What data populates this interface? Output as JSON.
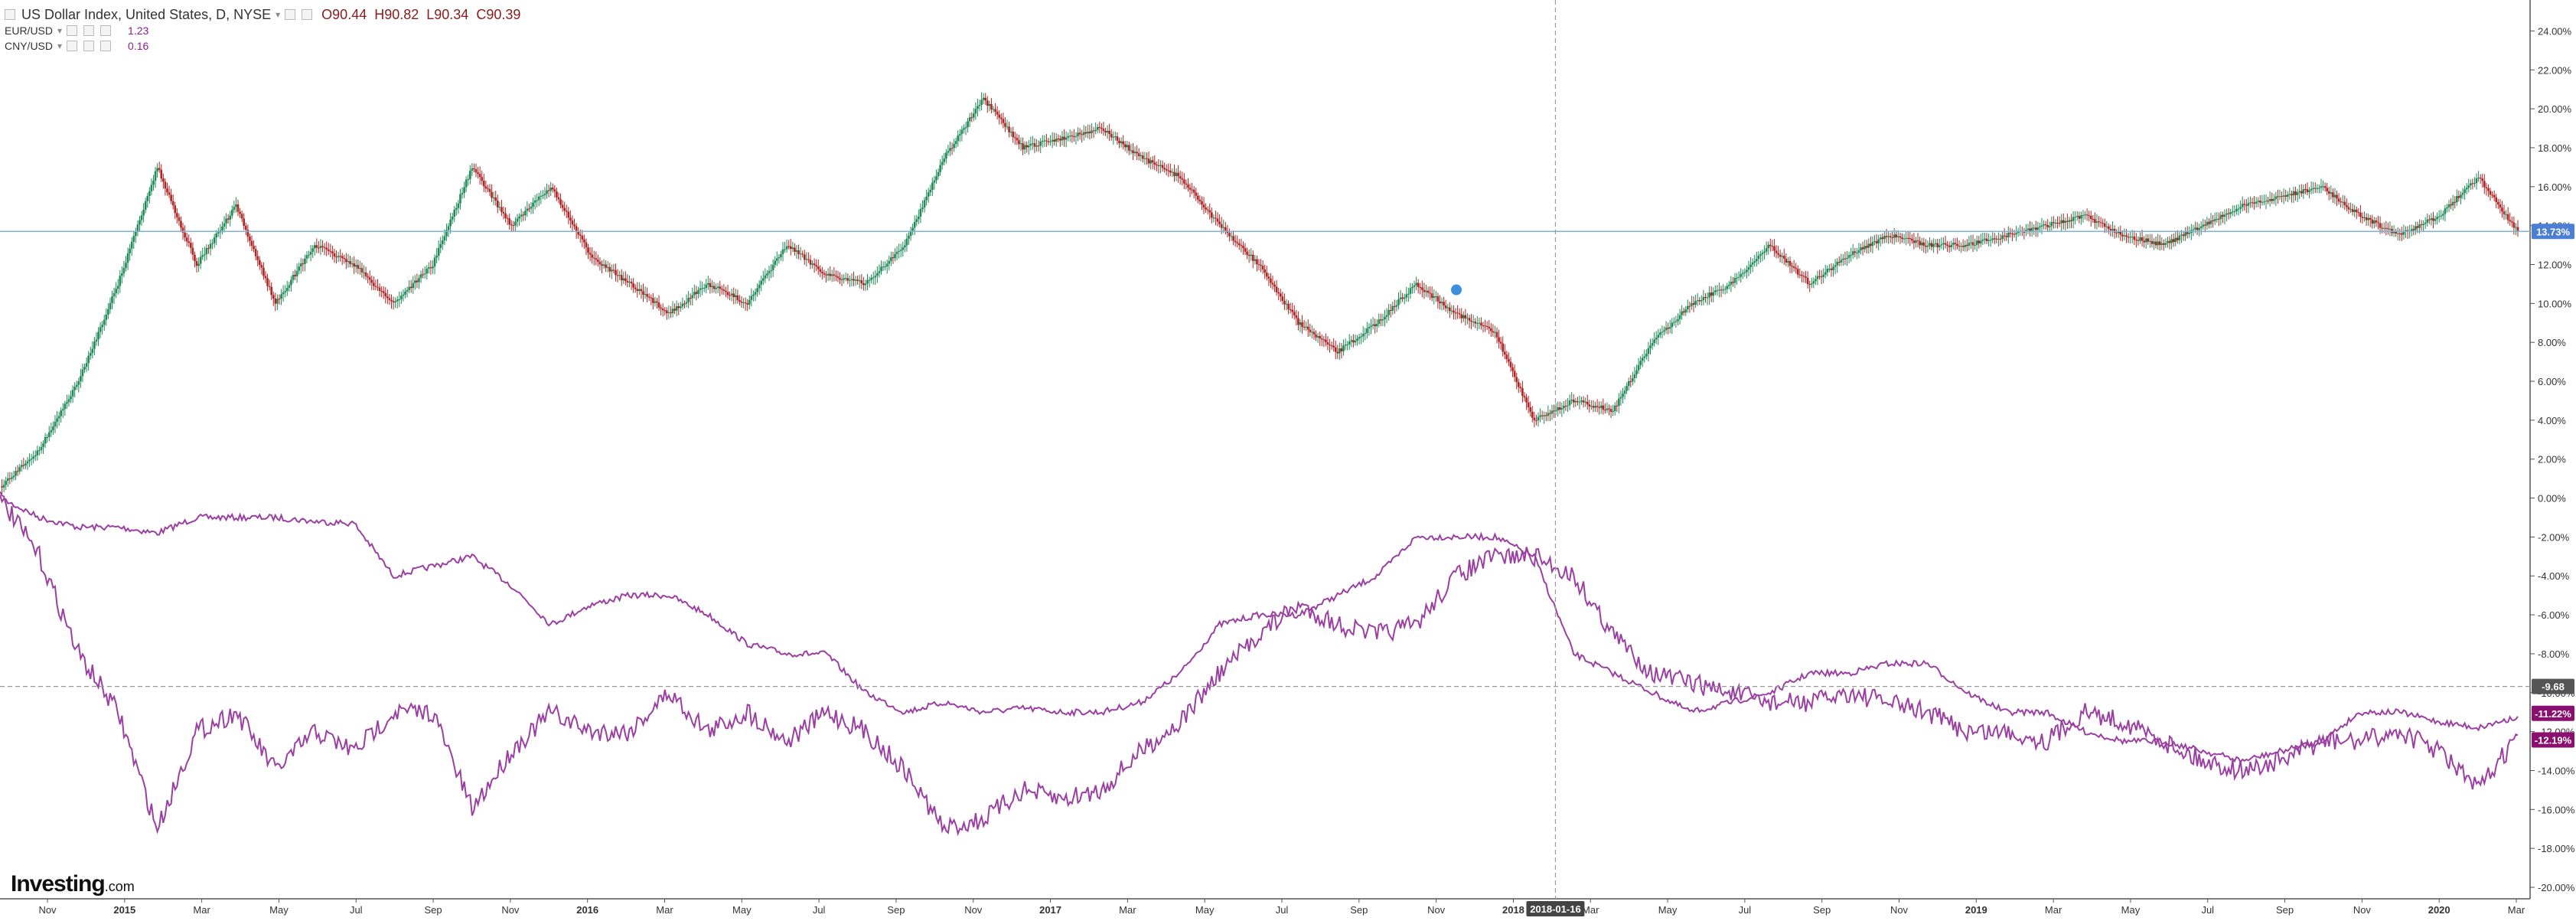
{
  "header": {
    "title": "US Dollar Index, United States, D, NYSE",
    "ohlc": [
      "O90.44",
      "H90.82",
      "L90.34",
      "C90.39"
    ]
  },
  "legend": [
    {
      "name": "EUR/USD",
      "value": "1.23",
      "color": "#8b2090"
    },
    {
      "name": "CNY/USD",
      "value": "0.16",
      "color": "#8b2090"
    }
  ],
  "logo": {
    "text": "Investing",
    "suffix": ".com"
  },
  "colors": {
    "up": "#1e8a57",
    "down": "#b22222",
    "compare": "#9b3fa3",
    "hline": "#7fb3d5",
    "badge_blue": "#4a7fd4",
    "badge_purple": "#8b0f6e",
    "badge_gray": "#555555"
  },
  "chart_data": {
    "type": "line",
    "title": "",
    "xlabel": "",
    "ylabel": "",
    "ylim": [
      -20,
      25
    ],
    "y_tick_labels": [
      "24.00%",
      "22.00%",
      "20.00%",
      "18.00%",
      "16.00%",
      "14.00%",
      "12.00%",
      "10.00%",
      "8.00%",
      "6.00%",
      "4.00%",
      "2.00%",
      "0.00%",
      "-2.00%",
      "-4.00%",
      "-6.00%",
      "-8.00%",
      "-10.00%",
      "-12.00%",
      "-14.00%",
      "-16.00%",
      "-18.00%",
      "-20.00%"
    ],
    "x_tick_labels": [
      "Nov",
      "2015",
      "Mar",
      "May",
      "Jul",
      "Sep",
      "Nov",
      "2016",
      "Mar",
      "May",
      "Jul",
      "Sep",
      "Nov",
      "2017",
      "Mar",
      "May",
      "Jul",
      "Sep",
      "Nov",
      "2018",
      "Mar",
      "May",
      "Jul",
      "Sep",
      "Nov",
      "2019",
      "Mar",
      "May",
      "Jul",
      "Sep",
      "Nov",
      "2020",
      "Mar"
    ],
    "grid": false,
    "crosshair": {
      "x_label": "2018-01-16",
      "y_label": "-9.68"
    },
    "series": [
      {
        "name": "US Dollar Index",
        "last_label": "13.73%",
        "points": [
          [
            "Nov",
            0.5
          ],
          [
            "Dec",
            2.5
          ],
          [
            "2015",
            6
          ],
          [
            "Feb",
            11
          ],
          [
            "Mar",
            17
          ],
          [
            "Apr",
            12
          ],
          [
            "May",
            15
          ],
          [
            "Jun",
            10
          ],
          [
            "Jul",
            13
          ],
          [
            "Aug",
            12
          ],
          [
            "Sep",
            10
          ],
          [
            "Oct",
            12
          ],
          [
            "Nov",
            17
          ],
          [
            "Dec",
            14
          ],
          [
            "2016",
            16
          ],
          [
            "Feb",
            12.5
          ],
          [
            "Mar",
            11
          ],
          [
            "Apr",
            9.5
          ],
          [
            "May",
            11
          ],
          [
            "Jun",
            10
          ],
          [
            "Jul",
            13
          ],
          [
            "Aug",
            11.5
          ],
          [
            "Sep",
            11
          ],
          [
            "Oct",
            13
          ],
          [
            "Nov",
            17.5
          ],
          [
            "Dec",
            20.5
          ],
          [
            "2017",
            18
          ],
          [
            "Feb",
            18.5
          ],
          [
            "Mar",
            19
          ],
          [
            "Apr",
            17.5
          ],
          [
            "May",
            16.5
          ],
          [
            "Jun",
            14
          ],
          [
            "Jul",
            12
          ],
          [
            "Aug",
            9
          ],
          [
            "Sep",
            7.5
          ],
          [
            "Oct",
            9
          ],
          [
            "Nov",
            11
          ],
          [
            "Dec",
            9.5
          ],
          [
            "2018",
            8.5
          ],
          [
            "Feb",
            4
          ],
          [
            "Mar",
            5
          ],
          [
            "Apr",
            4.5
          ],
          [
            "May",
            8
          ],
          [
            "Jun",
            10
          ],
          [
            "Jul",
            11
          ],
          [
            "Aug",
            13
          ],
          [
            "Sep",
            11
          ],
          [
            "Oct",
            12.5
          ],
          [
            "Nov",
            13.5
          ],
          [
            "Dec",
            13
          ],
          [
            "2019",
            13
          ],
          [
            "Feb",
            13.5
          ],
          [
            "Mar",
            14
          ],
          [
            "Apr",
            14.5
          ],
          [
            "May",
            13.5
          ],
          [
            "Jun",
            13
          ],
          [
            "Jul",
            14
          ],
          [
            "Aug",
            15
          ],
          [
            "Sep",
            15.5
          ],
          [
            "Oct",
            16
          ],
          [
            "Nov",
            14.5
          ],
          [
            "Dec",
            13.5
          ],
          [
            "2020",
            14.5
          ],
          [
            "Feb",
            16.5
          ],
          [
            "Mar",
            13.7
          ]
        ]
      },
      {
        "name": "EUR/USD",
        "last_label": "-11.22%",
        "points": [
          [
            "Nov",
            0
          ],
          [
            "Dec",
            -1
          ],
          [
            "2015",
            -1.5
          ],
          [
            "Feb",
            -1.5
          ],
          [
            "Mar",
            -1.8
          ],
          [
            "Apr",
            -1
          ],
          [
            "May",
            -1
          ],
          [
            "Jun",
            -1
          ],
          [
            "Jul",
            -1.2
          ],
          [
            "Aug",
            -1.3
          ],
          [
            "Sep",
            -4
          ],
          [
            "Oct",
            -3.5
          ],
          [
            "Nov",
            -3
          ],
          [
            "Dec",
            -4.5
          ],
          [
            "2016",
            -6.5
          ],
          [
            "Feb",
            -5.5
          ],
          [
            "Mar",
            -5
          ],
          [
            "Apr",
            -5
          ],
          [
            "May",
            -6
          ],
          [
            "Jun",
            -7.5
          ],
          [
            "Jul",
            -8
          ],
          [
            "Aug",
            -8
          ],
          [
            "Sep",
            -10
          ],
          [
            "Oct",
            -11
          ],
          [
            "Nov",
            -10.5
          ],
          [
            "Dec",
            -11
          ],
          [
            "2017",
            -10.8
          ],
          [
            "Feb",
            -11
          ],
          [
            "Mar",
            -11
          ],
          [
            "Apr",
            -10.5
          ],
          [
            "May",
            -9
          ],
          [
            "Jun",
            -6.5
          ],
          [
            "Jul",
            -6
          ],
          [
            "Aug",
            -6
          ],
          [
            "Sep",
            -5
          ],
          [
            "Oct",
            -4
          ],
          [
            "Nov",
            -2
          ],
          [
            "Dec",
            -2
          ],
          [
            "2018",
            -2
          ],
          [
            "Feb",
            -3
          ],
          [
            "Mar",
            -8
          ],
          [
            "Apr",
            -9
          ],
          [
            "May",
            -10
          ],
          [
            "Jun",
            -11
          ],
          [
            "Jul",
            -10.5
          ],
          [
            "Aug",
            -10
          ],
          [
            "Sep",
            -9
          ],
          [
            "Oct",
            -9
          ],
          [
            "Nov",
            -8.5
          ],
          [
            "Dec",
            -8.5
          ],
          [
            "2019",
            -10
          ],
          [
            "Feb",
            -11
          ],
          [
            "Mar",
            -11
          ],
          [
            "Apr",
            -12
          ],
          [
            "May",
            -12.5
          ],
          [
            "Jun",
            -12.5
          ],
          [
            "Jul",
            -13
          ],
          [
            "Aug",
            -13.5
          ],
          [
            "Sep",
            -13
          ],
          [
            "Oct",
            -12.5
          ],
          [
            "Nov",
            -11
          ],
          [
            "Dec",
            -11
          ],
          [
            "2020",
            -11.5
          ],
          [
            "Feb",
            -11.8
          ],
          [
            "Mar",
            -11.22
          ]
        ]
      },
      {
        "name": "CNY/USD",
        "last_label": "-12.19%",
        "points": [
          [
            "Nov",
            0
          ],
          [
            "Dec",
            -3
          ],
          [
            "2015",
            -8
          ],
          [
            "Feb",
            -11
          ],
          [
            "Mar",
            -17
          ],
          [
            "Apr",
            -12
          ],
          [
            "May",
            -11
          ],
          [
            "Jun",
            -14
          ],
          [
            "Jul",
            -12
          ],
          [
            "Aug",
            -13
          ],
          [
            "Sep",
            -11
          ],
          [
            "Oct",
            -11
          ],
          [
            "Nov",
            -16
          ],
          [
            "Dec",
            -13
          ],
          [
            "2016",
            -11
          ],
          [
            "Feb",
            -12
          ],
          [
            "Mar",
            -12
          ],
          [
            "Apr",
            -10
          ],
          [
            "May",
            -12
          ],
          [
            "Jun",
            -11
          ],
          [
            "Jul",
            -12.5
          ],
          [
            "Aug",
            -11
          ],
          [
            "Sep",
            -12
          ],
          [
            "Oct",
            -14
          ],
          [
            "Nov",
            -17
          ],
          [
            "Dec",
            -16.5
          ],
          [
            "2017",
            -15
          ],
          [
            "Feb",
            -15.5
          ],
          [
            "Mar",
            -15
          ],
          [
            "Apr",
            -13
          ],
          [
            "May",
            -11.5
          ],
          [
            "Jun",
            -9
          ],
          [
            "Jul",
            -7
          ],
          [
            "Aug",
            -5.5
          ],
          [
            "Sep",
            -6.5
          ],
          [
            "Oct",
            -7
          ],
          [
            "Nov",
            -6.5
          ],
          [
            "Dec",
            -4
          ],
          [
            "2018",
            -3
          ],
          [
            "Feb",
            -3
          ],
          [
            "Mar",
            -4
          ],
          [
            "Apr",
            -7
          ],
          [
            "May",
            -9
          ],
          [
            "Jun",
            -9.5
          ],
          [
            "Jul",
            -10
          ],
          [
            "Aug",
            -10.5
          ],
          [
            "Sep",
            -10.5
          ],
          [
            "Oct",
            -10
          ],
          [
            "Nov",
            -10.5
          ],
          [
            "Dec",
            -11
          ],
          [
            "2019",
            -12
          ],
          [
            "Feb",
            -12
          ],
          [
            "Mar",
            -12.5
          ],
          [
            "Apr",
            -11
          ],
          [
            "May",
            -11.5
          ],
          [
            "Jun",
            -12.5
          ],
          [
            "Jul",
            -13.5
          ],
          [
            "Aug",
            -14
          ],
          [
            "Sep",
            -13.5
          ],
          [
            "Oct",
            -12.5
          ],
          [
            "Nov",
            -12.5
          ],
          [
            "Dec",
            -12
          ],
          [
            "2020",
            -13
          ],
          [
            "Feb",
            -15
          ],
          [
            "Mar",
            -12.19
          ]
        ]
      }
    ]
  }
}
